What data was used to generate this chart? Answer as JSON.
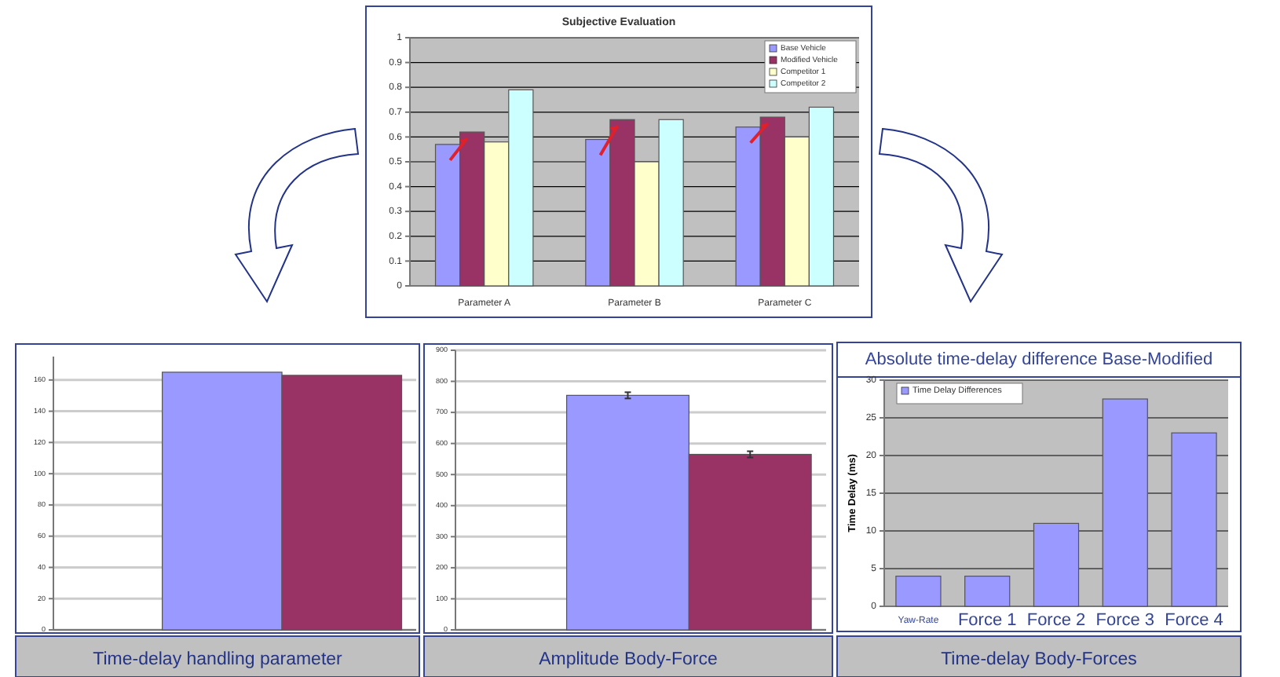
{
  "chart_data": [
    {
      "type": "bar",
      "title": "Subjective Evaluation",
      "categories": [
        "Parameter A",
        "Parameter B",
        "Parameter C"
      ],
      "series": [
        {
          "name": "Base Vehicle",
          "color": "#9999ff",
          "values": [
            0.57,
            0.59,
            0.64
          ]
        },
        {
          "name": "Modified Vehicle",
          "color": "#993366",
          "values": [
            0.62,
            0.67,
            0.68
          ]
        },
        {
          "name": "Competitor 1",
          "color": "#ffffcc",
          "values": [
            0.58,
            0.5,
            0.6
          ]
        },
        {
          "name": "Competitor 2",
          "color": "#ccffff",
          "values": [
            0.79,
            0.67,
            0.72
          ]
        }
      ],
      "ylim": [
        0,
        1
      ],
      "yticks": [
        0,
        0.1,
        0.2,
        0.3,
        0.4,
        0.5,
        0.6,
        0.7,
        0.8,
        0.9,
        1
      ],
      "grid": "y",
      "legend": "top right"
    },
    {
      "type": "bar",
      "categories": [
        null,
        null
      ],
      "values": [
        165,
        163
      ],
      "colors": [
        "#9999ff",
        "#993366"
      ],
      "ylim": [
        0,
        175
      ],
      "yticks": [
        0,
        20,
        40,
        60,
        80,
        100,
        120,
        140,
        160
      ],
      "grid": "y",
      "annotations": [
        "Time-delay handling parameter"
      ]
    },
    {
      "type": "bar",
      "categories": [
        null,
        null
      ],
      "values": [
        755,
        565
      ],
      "errors": [
        10,
        10
      ],
      "colors": [
        "#9999ff",
        "#993366"
      ],
      "ylim": [
        0,
        900
      ],
      "yticks": [
        0,
        100,
        200,
        300,
        400,
        500,
        600,
        700,
        800,
        900
      ],
      "grid": "y",
      "annotations": [
        "Amplitude Body-Force"
      ]
    },
    {
      "type": "bar",
      "title": "Absolute time-delay difference Base-Modified",
      "ylabel": "Time Delay (ms)",
      "categories": [
        "Yaw-Rate",
        "Force 1",
        "Force 2",
        "Force 3",
        "Force 4"
      ],
      "series": [
        {
          "name": "Time Delay Differences",
          "color": "#9999ff",
          "values": [
            4,
            4,
            11,
            27.5,
            23
          ]
        }
      ],
      "ylim": [
        0,
        30
      ],
      "yticks": [
        0,
        5,
        10,
        15,
        20,
        25,
        30
      ],
      "grid": "y",
      "legend": "top left",
      "annotations": [
        "Time-delay Body-Forces"
      ]
    }
  ]
}
